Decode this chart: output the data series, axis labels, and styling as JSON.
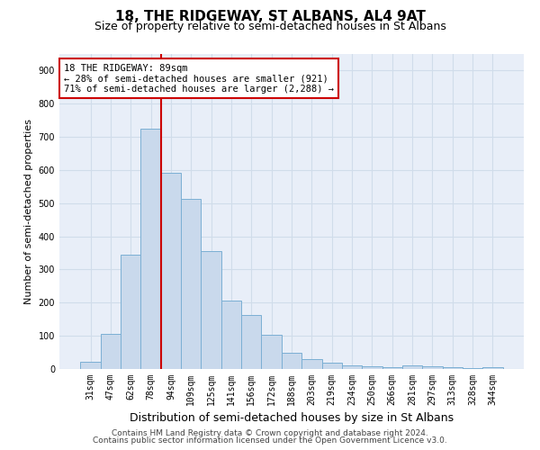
{
  "title1": "18, THE RIDGEWAY, ST ALBANS, AL4 9AT",
  "title2": "Size of property relative to semi-detached houses in St Albans",
  "xlabel": "Distribution of semi-detached houses by size in St Albans",
  "ylabel": "Number of semi-detached properties",
  "categories": [
    "31sqm",
    "47sqm",
    "62sqm",
    "78sqm",
    "94sqm",
    "109sqm",
    "125sqm",
    "141sqm",
    "156sqm",
    "172sqm",
    "188sqm",
    "203sqm",
    "219sqm",
    "234sqm",
    "250sqm",
    "266sqm",
    "281sqm",
    "297sqm",
    "313sqm",
    "328sqm",
    "344sqm"
  ],
  "values": [
    22,
    107,
    345,
    725,
    593,
    513,
    355,
    207,
    163,
    102,
    50,
    30,
    18,
    12,
    8,
    5,
    10,
    8,
    5,
    4,
    5
  ],
  "bar_color": "#c9d9ec",
  "bar_edge_color": "#7bafd4",
  "vline_color": "#cc0000",
  "vline_x_index": 3.5,
  "annotation_text": "18 THE RIDGEWAY: 89sqm\n← 28% of semi-detached houses are smaller (921)\n71% of semi-detached houses are larger (2,288) →",
  "annotation_box_color": "#ffffff",
  "annotation_box_edge_color": "#cc0000",
  "ylim": [
    0,
    950
  ],
  "yticks": [
    0,
    100,
    200,
    300,
    400,
    500,
    600,
    700,
    800,
    900
  ],
  "grid_color": "#d0dcea",
  "background_color": "#e8eef8",
  "footer1": "Contains HM Land Registry data © Crown copyright and database right 2024.",
  "footer2": "Contains public sector information licensed under the Open Government Licence v3.0.",
  "title1_fontsize": 11,
  "title2_fontsize": 9,
  "xlabel_fontsize": 9,
  "ylabel_fontsize": 8,
  "tick_fontsize": 7,
  "annotation_fontsize": 7.5,
  "footer_fontsize": 6.5
}
